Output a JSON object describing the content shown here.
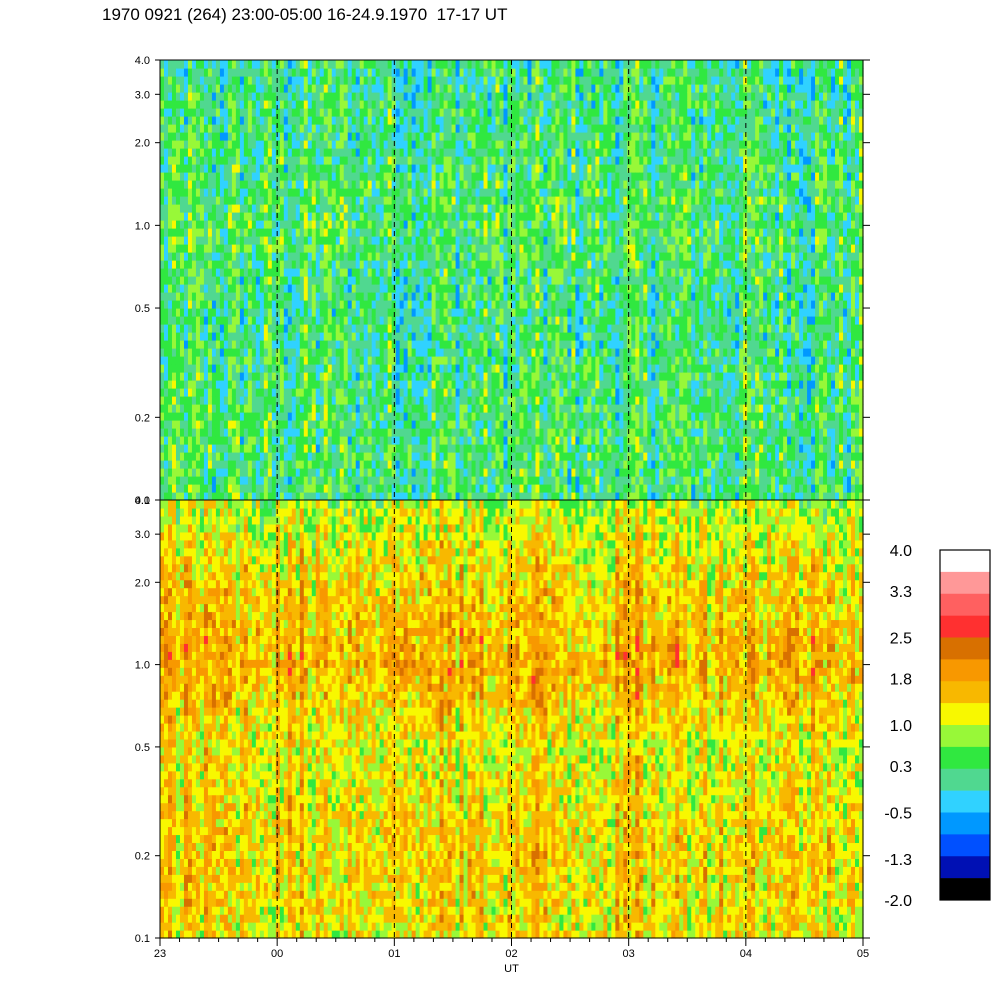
{
  "title": "1970 0921 (264) 23:00-05:00 16-24.9.1970  17-17 UT",
  "colors": {
    "palette": [
      "#000000",
      "#0010b4",
      "#0050ff",
      "#0098ff",
      "#30d2ff",
      "#50d890",
      "#30e840",
      "#98f838",
      "#f8f800",
      "#f8b800",
      "#f89800",
      "#d87000",
      "#ff3030",
      "#ff6060",
      "#ff9898",
      "#ffffff"
    ]
  },
  "chart_data": [
    {
      "type": "heatmap",
      "name": "upper-spectrogram",
      "xlabel": "",
      "ylabel": "",
      "ylim": [
        0.1,
        4.0
      ],
      "yscale": "log",
      "xlim": [
        23,
        29
      ],
      "y_ticks": [
        {
          "value": 0.1,
          "label": "0.1"
        },
        {
          "value": 0.2,
          "label": "0.2"
        },
        {
          "value": 0.5,
          "label": "0.5"
        },
        {
          "value": 1.0,
          "label": "1.0"
        },
        {
          "value": 2.0,
          "label": "2.0"
        },
        {
          "value": 3.0,
          "label": "3.0"
        },
        {
          "value": 4.0,
          "label": "4.0"
        }
      ],
      "base_level": 0.3,
      "level_profile": [
        {
          "freq": 0.1,
          "level": 0.25
        },
        {
          "freq": 0.2,
          "level": 0.3
        },
        {
          "freq": 0.5,
          "level": 0.15
        },
        {
          "freq": 1.0,
          "level": 0.35
        },
        {
          "freq": 2.0,
          "level": 0.2
        },
        {
          "freq": 4.0,
          "level": 0.15
        }
      ]
    },
    {
      "type": "heatmap",
      "name": "lower-spectrogram",
      "xlabel": "UT",
      "ylabel": "",
      "ylim": [
        0.1,
        4.0
      ],
      "yscale": "log",
      "xlim": [
        23,
        29
      ],
      "y_ticks": [
        {
          "value": 0.1,
          "label": "0.1"
        },
        {
          "value": 0.2,
          "label": "0.2"
        },
        {
          "value": 0.5,
          "label": "0.5"
        },
        {
          "value": 1.0,
          "label": "1.0"
        },
        {
          "value": 2.0,
          "label": "2.0"
        },
        {
          "value": 3.0,
          "label": "3.0"
        },
        {
          "value": 4.0,
          "label": "4.0"
        }
      ],
      "x_ticks": [
        {
          "value": 23,
          "label": "23"
        },
        {
          "value": 24,
          "label": "00"
        },
        {
          "value": 25,
          "label": "01"
        },
        {
          "value": 26,
          "label": "02"
        },
        {
          "value": 27,
          "label": "03"
        },
        {
          "value": 28,
          "label": "04"
        },
        {
          "value": 29,
          "label": "05"
        }
      ],
      "hour_markers": [
        24,
        25,
        26,
        27,
        28
      ],
      "level_profile": [
        {
          "freq": 0.1,
          "level": 1.3
        },
        {
          "freq": 0.2,
          "level": 1.45
        },
        {
          "freq": 0.5,
          "level": 1.2
        },
        {
          "freq": 1.0,
          "level": 1.75
        },
        {
          "freq": 2.0,
          "level": 1.45
        },
        {
          "freq": 4.0,
          "level": 0.9
        }
      ]
    },
    {
      "type": "colorbar",
      "name": "color-scale",
      "range": [
        -2.0,
        4.0
      ],
      "labels": [
        "4.0",
        "3.3",
        "2.5",
        "1.8",
        "1.0",
        "0.3",
        "-0.5",
        "-1.3",
        "-2.0"
      ],
      "label_values": [
        4.0,
        3.3,
        2.5,
        1.8,
        1.0,
        0.3,
        -0.5,
        -1.3,
        -2.0
      ]
    }
  ]
}
